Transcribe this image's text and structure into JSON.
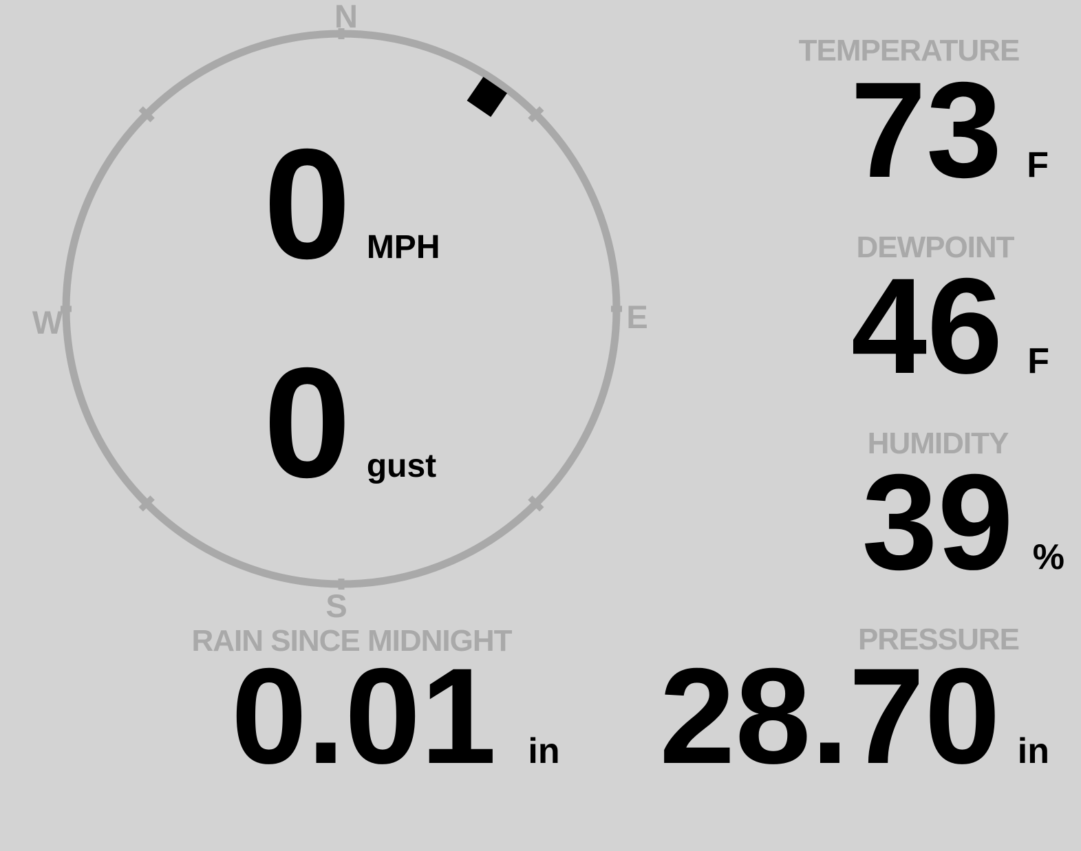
{
  "colors": {
    "background": "#d3d3d3",
    "muted": "#a9a9a9",
    "ink": "#000000"
  },
  "wind_gauge": {
    "compass": {
      "north": "N",
      "east": "E",
      "south": "S",
      "west": "W"
    },
    "direction_marker_deg": 34.5,
    "speed": {
      "value": "0",
      "unit": "MPH"
    },
    "gust": {
      "value": "0",
      "unit": "gust"
    }
  },
  "readouts": {
    "temperature": {
      "label": "TEMPERATURE",
      "value": "73",
      "unit": "F"
    },
    "dewpoint": {
      "label": "DEWPOINT",
      "value": "46",
      "unit": "F"
    },
    "humidity": {
      "label": "HUMIDITY",
      "value": "39",
      "unit": "%"
    },
    "rain": {
      "label": "RAIN SINCE MIDNIGHT",
      "value": "0.01",
      "unit": "in"
    },
    "pressure": {
      "label": "PRESSURE",
      "value": "28.70",
      "unit": "in"
    }
  }
}
